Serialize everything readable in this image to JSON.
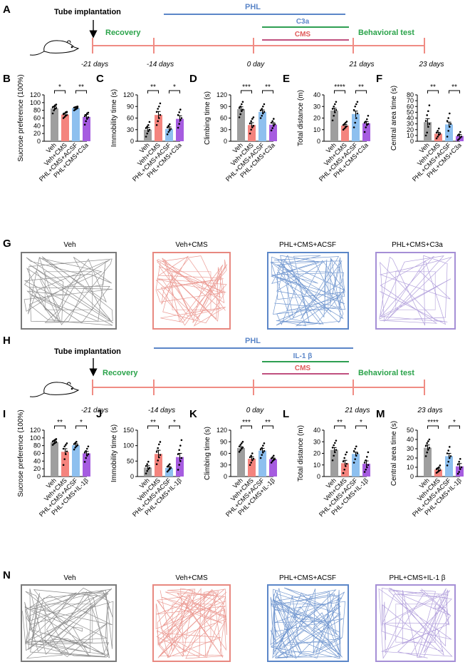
{
  "colors": {
    "veh": "#9e9e9e",
    "veh_cms": "#f4847e",
    "phl_acsf": "#8ec0ef",
    "phl_treat": "#a65ce0",
    "timeline": "#f08c84",
    "phl": "#5b86c8",
    "c3a": "#2e9f52",
    "cms": "#c0507f",
    "label_green": "#2aa34a",
    "track_veh": "#7a7a7a",
    "track_vehcms": "#e88880",
    "track_acsf": "#5b86c8",
    "track_treat": "#a58fd6"
  },
  "panelA": {
    "letter": "A",
    "tube_label": "Tube implantation",
    "recovery_label": "Recovery",
    "behavior_label": "Behavioral test",
    "phl_label": "PHL",
    "agent_label": "C3a",
    "cms_label": "CMS",
    "ticks": [
      "-21 days",
      "-14 days",
      "0 day",
      "21 days",
      "23 days"
    ]
  },
  "panelH": {
    "letter": "H",
    "tube_label": "Tube implantation",
    "recovery_label": "Recovery",
    "behavior_label": "Behavioral test",
    "phl_label": "PHL",
    "agent_label": "IL-1 β",
    "cms_label": "CMS",
    "ticks": [
      "-21 days",
      "-14 days",
      "0 day",
      "21 days",
      "23 days"
    ]
  },
  "panelG": {
    "letter": "G",
    "titles": [
      "Veh",
      "Veh+CMS",
      "PHL+CMS+ACSF",
      "PHL+CMS+C3a"
    ]
  },
  "panelN": {
    "letter": "N",
    "titles": [
      "Veh",
      "Veh+CMS",
      "PHL+CMS+ACSF",
      "PHL+CMS+IL-1 β"
    ]
  },
  "chart_data": [
    {
      "panel": "B",
      "type": "bar",
      "ylabel": "Sucrose preference (100%)",
      "ylim": [
        0,
        120
      ],
      "yticks": [
        0,
        20,
        40,
        60,
        80,
        100,
        120
      ],
      "categories": [
        "Veh",
        "Veh+CMS",
        "PHL+CMS+ACSF",
        "PHL+CMS+C3a"
      ],
      "values": [
        85,
        69,
        86,
        63
      ],
      "errors": [
        5,
        4,
        2,
        6
      ],
      "points": [
        [
          72,
          80,
          84,
          86,
          88,
          90,
          93,
          95
        ],
        [
          60,
          63,
          66,
          68,
          70,
          72,
          75,
          76
        ],
        [
          80,
          82,
          84,
          86,
          87,
          88,
          89,
          90
        ],
        [
          43,
          52,
          58,
          62,
          65,
          68,
          72,
          74
        ]
      ],
      "significance": [
        {
          "pair": [
            0,
            1
          ],
          "label": "*"
        },
        {
          "pair": [
            2,
            3
          ],
          "label": "**"
        }
      ]
    },
    {
      "panel": "C",
      "type": "bar",
      "ylabel": "Immobility time (s)",
      "ylim": [
        0,
        120
      ],
      "yticks": [
        0,
        30,
        60,
        90,
        120
      ],
      "categories": [
        "Veh",
        "Veh+CMS",
        "PHL+CMS+ACSF",
        "PHL+CMS+C3a"
      ],
      "values": [
        30,
        68,
        32,
        58
      ],
      "errors": [
        6,
        9,
        5,
        8
      ],
      "points": [
        [
          12,
          20,
          26,
          30,
          34,
          38,
          42,
          50
        ],
        [
          42,
          52,
          60,
          68,
          76,
          84,
          90,
          98
        ],
        [
          18,
          24,
          28,
          32,
          36,
          40,
          44
        ],
        [
          35,
          45,
          55,
          60,
          68,
          75,
          82
        ]
      ],
      "significance": [
        {
          "pair": [
            0,
            1
          ],
          "label": "**"
        },
        {
          "pair": [
            2,
            3
          ],
          "label": "*"
        }
      ]
    },
    {
      "panel": "D",
      "type": "bar",
      "ylabel": "Climbing time (s)",
      "ylim": [
        0,
        120
      ],
      "yticks": [
        0,
        30,
        60,
        90,
        120
      ],
      "categories": [
        "Veh",
        "Veh+CMS",
        "PHL+CMS+ACSF",
        "PHL+CMS+C3a"
      ],
      "values": [
        83,
        42,
        76,
        43
      ],
      "errors": [
        6,
        6,
        5,
        5
      ],
      "points": [
        [
          62,
          70,
          78,
          82,
          86,
          90,
          96,
          102
        ],
        [
          20,
          30,
          36,
          40,
          46,
          52,
          58,
          62
        ],
        [
          60,
          66,
          72,
          76,
          80,
          84,
          90,
          96
        ],
        [
          28,
          34,
          40,
          44,
          48,
          52,
          58
        ]
      ],
      "significance": [
        {
          "pair": [
            0,
            1
          ],
          "label": "***"
        },
        {
          "pair": [
            2,
            3
          ],
          "label": "**"
        }
      ]
    },
    {
      "panel": "E",
      "type": "bar",
      "ylabel": "Total distance (m)",
      "ylim": [
        0,
        40
      ],
      "yticks": [
        0,
        10,
        20,
        30,
        40
      ],
      "categories": [
        "Veh",
        "Veh+CMS",
        "PHL+CMS+ACSF",
        "PHL+CMS+C3a"
      ],
      "values": [
        26.5,
        13.5,
        23.5,
        15.5
      ],
      "errors": [
        2,
        1,
        2.5,
        1.5
      ],
      "points": [
        [
          18,
          22,
          25,
          27,
          28,
          30,
          32,
          34
        ],
        [
          10,
          11,
          12,
          13,
          14,
          15,
          16,
          17
        ],
        [
          12,
          16,
          20,
          24,
          27,
          30,
          32,
          34
        ],
        [
          8,
          12,
          14,
          15,
          16,
          17,
          19,
          22
        ]
      ],
      "significance": [
        {
          "pair": [
            0,
            1
          ],
          "label": "****"
        },
        {
          "pair": [
            2,
            3
          ],
          "label": "**"
        }
      ]
    },
    {
      "panel": "F",
      "type": "bar",
      "ylabel": "Central area time (s)",
      "ylim": [
        0,
        80
      ],
      "yticks": [
        0,
        10,
        20,
        30,
        40,
        50,
        60,
        70,
        80
      ],
      "categories": [
        "Veh",
        "Veh+CMS",
        "PHL+CMS+ACSF",
        "PHL+CMS+C3a"
      ],
      "values": [
        33,
        13,
        29,
        9
      ],
      "errors": [
        6,
        2.5,
        4,
        2.5
      ],
      "points": [
        [
          10,
          15,
          25,
          30,
          35,
          45,
          52,
          62
        ],
        [
          5,
          8,
          11,
          13,
          15,
          18,
          22
        ],
        [
          8,
          18,
          25,
          30,
          35,
          40,
          48
        ],
        [
          2,
          4,
          6,
          8,
          10,
          12,
          16
        ]
      ],
      "significance": [
        {
          "pair": [
            0,
            1
          ],
          "label": "**"
        },
        {
          "pair": [
            2,
            3
          ],
          "label": "**"
        }
      ]
    },
    {
      "panel": "I",
      "type": "bar",
      "ylabel": "Sucrose preference (100%)",
      "ylim": [
        0,
        120
      ],
      "yticks": [
        0,
        20,
        40,
        60,
        80,
        100,
        120
      ],
      "categories": [
        "Veh",
        "Veh+CMS",
        "PHL+CMS+ACSF",
        "PHL+CMS+IL-1β"
      ],
      "values": [
        89,
        64,
        81,
        60
      ],
      "errors": [
        3,
        8,
        4,
        5
      ],
      "points": [
        [
          82,
          85,
          87,
          89,
          91,
          93,
          95,
          97
        ],
        [
          30,
          45,
          58,
          65,
          72,
          78,
          82,
          86
        ],
        [
          70,
          75,
          78,
          81,
          84,
          87,
          90
        ],
        [
          38,
          48,
          54,
          58,
          62,
          66,
          72,
          78
        ]
      ],
      "significance": [
        {
          "pair": [
            0,
            1
          ],
          "label": "**"
        },
        {
          "pair": [
            2,
            3
          ],
          "label": "*"
        }
      ]
    },
    {
      "panel": "J",
      "type": "bar",
      "ylabel": "Immobility time (s)",
      "ylim": [
        0,
        150
      ],
      "yticks": [
        0,
        50,
        100,
        150
      ],
      "categories": [
        "Veh",
        "Veh+CMS",
        "PHL+CMS+ACSF",
        "PHL+CMS+IL-1β"
      ],
      "values": [
        29,
        73,
        28,
        63
      ],
      "errors": [
        6,
        12,
        4,
        12
      ],
      "points": [
        [
          10,
          18,
          24,
          28,
          34,
          40,
          48
        ],
        [
          40,
          52,
          62,
          70,
          80,
          92,
          104,
          112
        ],
        [
          16,
          20,
          24,
          28,
          32,
          36,
          40
        ],
        [
          22,
          38,
          50,
          60,
          72,
          86,
          100,
          118
        ]
      ],
      "significance": [
        {
          "pair": [
            0,
            1
          ],
          "label": "**"
        },
        {
          "pair": [
            2,
            3
          ],
          "label": "*"
        }
      ]
    },
    {
      "panel": "K",
      "type": "bar",
      "ylabel": "Climbing time (s)",
      "ylim": [
        0,
        120
      ],
      "yticks": [
        0,
        30,
        60,
        90,
        120
      ],
      "categories": [
        "Veh",
        "Veh+CMS",
        "PHL+CMS+ACSF",
        "PHL+CMS+IL-1β"
      ],
      "values": [
        74,
        46,
        67,
        45
      ],
      "errors": [
        3,
        5,
        6,
        3
      ],
      "points": [
        [
          64,
          68,
          72,
          75,
          78,
          82,
          86,
          90
        ],
        [
          30,
          36,
          42,
          46,
          50,
          54,
          60
        ],
        [
          48,
          56,
          62,
          66,
          70,
          74,
          80,
          86
        ],
        [
          36,
          40,
          43,
          45,
          47,
          50,
          54
        ]
      ],
      "significance": [
        {
          "pair": [
            0,
            1
          ],
          "label": "***"
        },
        {
          "pair": [
            2,
            3
          ],
          "label": "**"
        }
      ]
    },
    {
      "panel": "L",
      "type": "bar",
      "ylabel": "Total distance (m)",
      "ylim": [
        0,
        40
      ],
      "yticks": [
        0,
        10,
        20,
        30,
        40
      ],
      "categories": [
        "Veh",
        "Veh+CMS",
        "PHL+CMS+ACSF",
        "PHL+CMS+IL-1β"
      ],
      "values": [
        23,
        11.5,
        19.5,
        11
      ],
      "errors": [
        2,
        2.5,
        1.5,
        2.5
      ],
      "points": [
        [
          14,
          18,
          21,
          23,
          25,
          27,
          29,
          31
        ],
        [
          3,
          6,
          9,
          11,
          13,
          16,
          19,
          21
        ],
        [
          12,
          15,
          18,
          20,
          22,
          24,
          26
        ],
        [
          4,
          6,
          8,
          10,
          12,
          14,
          17,
          21
        ]
      ],
      "significance": [
        {
          "pair": [
            0,
            1
          ],
          "label": "**"
        },
        {
          "pair": [
            2,
            3
          ],
          "label": "*"
        }
      ]
    },
    {
      "panel": "M",
      "type": "bar",
      "ylabel": "Central area time (s)",
      "ylim": [
        0,
        50
      ],
      "yticks": [
        0,
        10,
        20,
        30,
        40,
        50
      ],
      "categories": [
        "Veh",
        "Veh+CMS",
        "PHL+CMS+ACSF",
        "PHL+CMS+IL-1β"
      ],
      "values": [
        31,
        7.5,
        22,
        11
      ],
      "errors": [
        3,
        1.5,
        3,
        3
      ],
      "points": [
        [
          22,
          26,
          29,
          31,
          33,
          36,
          38,
          40
        ],
        [
          4,
          5,
          6,
          7,
          8,
          9,
          10,
          12
        ],
        [
          12,
          16,
          20,
          22,
          25,
          28,
          32
        ],
        [
          3,
          5,
          8,
          10,
          13,
          16,
          19
        ]
      ],
      "significance": [
        {
          "pair": [
            0,
            1
          ],
          "label": "****"
        },
        {
          "pair": [
            2,
            3
          ],
          "label": "*"
        }
      ]
    }
  ]
}
